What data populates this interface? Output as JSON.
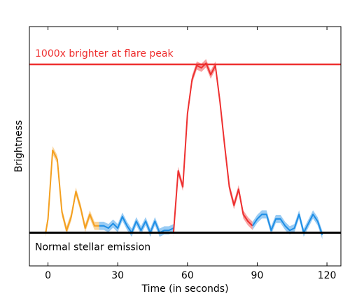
{
  "chart_data": {
    "type": "line",
    "xlabel": "Time (in seconds)",
    "ylabel": "Brightness",
    "xlim": [
      -8,
      126
    ],
    "ylim": [
      -0.065,
      0.98
    ],
    "xticks": [
      0,
      30,
      60,
      90,
      120
    ],
    "grid": false,
    "reference_lines": [
      {
        "label": "1000x brighter at flare peak",
        "y": 0.815,
        "color": "#ee3030"
      },
      {
        "label": "Normal stellar emission",
        "y": 0.08,
        "color": "#000000"
      }
    ],
    "series": [
      {
        "color": "#f4a020",
        "x": [
          -1,
          0,
          2,
          4,
          6,
          8,
          10,
          12,
          14,
          16,
          18,
          20,
          22
        ],
        "y": [
          0.08,
          0.14,
          0.44,
          0.4,
          0.17,
          0.09,
          0.15,
          0.26,
          0.19,
          0.1,
          0.16,
          0.11,
          0.11
        ]
      },
      {
        "color": "#1f8fe6",
        "x": [
          22,
          24,
          26,
          28,
          30,
          32,
          34,
          36,
          38,
          40,
          42,
          44,
          46,
          48,
          50,
          52,
          54
        ],
        "y": [
          0.11,
          0.11,
          0.1,
          0.12,
          0.1,
          0.15,
          0.11,
          0.08,
          0.13,
          0.09,
          0.13,
          0.08,
          0.13,
          0.08,
          0.09,
          0.09,
          0.1
        ]
      },
      {
        "color": "#ee3030",
        "x": [
          54,
          56,
          58,
          60,
          62,
          64,
          66,
          68,
          70,
          72,
          74,
          76,
          78,
          80,
          82,
          84,
          86,
          88
        ],
        "y": [
          0.08,
          0.35,
          0.28,
          0.6,
          0.75,
          0.81,
          0.8,
          0.82,
          0.77,
          0.81,
          0.65,
          0.46,
          0.28,
          0.2,
          0.27,
          0.16,
          0.13,
          0.11
        ]
      },
      {
        "color": "#1f8fe6",
        "x": [
          88,
          90,
          92,
          94,
          96,
          98,
          100,
          102,
          104,
          106,
          108,
          110,
          112,
          114,
          116,
          118
        ],
        "y": [
          0.11,
          0.14,
          0.16,
          0.16,
          0.09,
          0.14,
          0.14,
          0.11,
          0.09,
          0.1,
          0.16,
          0.08,
          0.12,
          0.16,
          0.13,
          0.07
        ]
      }
    ]
  }
}
